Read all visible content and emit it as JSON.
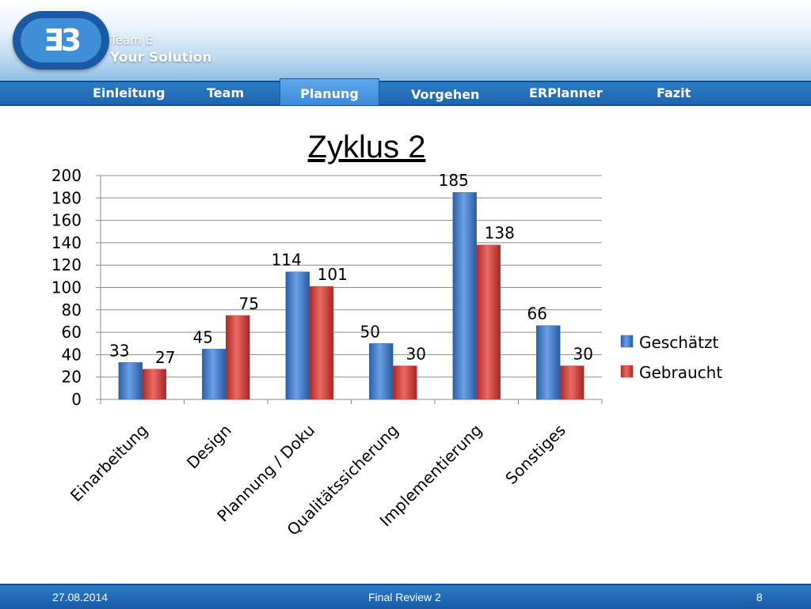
{
  "header": {
    "brand_line1": "Team E",
    "brand_line2": "Your Solution",
    "logo_icon": "ee-logo-icon"
  },
  "nav": {
    "items": [
      "Einleitung",
      "Team",
      "Planung",
      "Vorgehen",
      "ERPlanner",
      "Fazit"
    ],
    "active": "Planung"
  },
  "slide": {
    "title": "Zyklus 2"
  },
  "colors": {
    "geschaetzt": "#3b77c7",
    "gebraucht": "#d23c38",
    "nav": "#1f65ad"
  },
  "chart_data": {
    "type": "bar",
    "title": "",
    "xlabel": "",
    "ylabel": "",
    "ylim": [
      0,
      200
    ],
    "yticks": [
      0,
      20,
      40,
      60,
      80,
      100,
      120,
      140,
      160,
      180,
      200
    ],
    "grid": true,
    "legend": "right",
    "categories": [
      "Einarbeitung",
      "Design",
      "Plannung / Doku",
      "Qualitätssicherung",
      "Implementierung",
      "Sonstiges"
    ],
    "series": [
      {
        "name": "Geschätzt",
        "values": [
          33,
          45,
          114,
          50,
          185,
          66
        ]
      },
      {
        "name": "Gebraucht",
        "values": [
          27,
          75,
          101,
          30,
          138,
          30
        ]
      }
    ]
  },
  "footer": {
    "date": "27.08.2014",
    "center": "Final Review 2",
    "page": "8"
  }
}
